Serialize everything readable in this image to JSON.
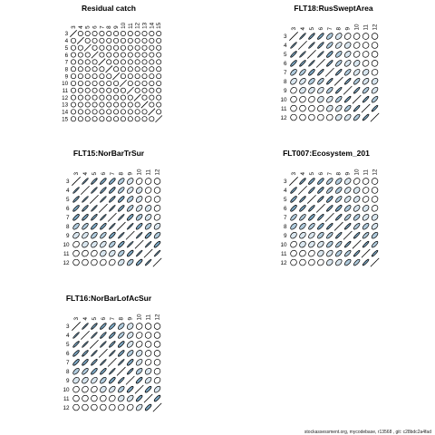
{
  "footer": "stockassessment.org, mycodebase, r13568 , git: c28bdc2a4fad",
  "colors": {
    "positive": "#7da9c6",
    "ellipse_edge": "#000000",
    "background": "#ffffff"
  },
  "chart_data": [
    {
      "type": "correlation-ellipse-matrix",
      "title": "Residual catch",
      "ages": [
        "3",
        "4",
        "5",
        "6",
        "7",
        "8",
        "9",
        "10",
        "11",
        "12",
        "13",
        "14",
        "15"
      ],
      "correlations": [
        [
          1,
          0.0,
          0.0,
          0.0,
          0.0,
          0.0,
          0.0,
          0.0,
          0.0,
          0.0,
          0.0,
          0.0,
          0.0
        ],
        [
          0.0,
          1,
          0.0,
          0.0,
          0.0,
          0.0,
          0.0,
          0.0,
          0.0,
          0.0,
          0.0,
          0.0,
          0.0
        ],
        [
          0.0,
          0.0,
          1,
          0.0,
          0.0,
          0.0,
          0.0,
          0.0,
          0.0,
          0.0,
          0.0,
          0.0,
          0.0
        ],
        [
          0.0,
          0.0,
          0.0,
          1,
          0.0,
          0.0,
          0.0,
          0.0,
          0.0,
          0.0,
          0.0,
          0.0,
          0.0
        ],
        [
          0.0,
          0.0,
          0.0,
          0.0,
          1,
          0.0,
          0.0,
          0.0,
          0.0,
          0.0,
          0.0,
          0.0,
          0.0
        ],
        [
          0.0,
          0.0,
          0.0,
          0.0,
          0.0,
          1,
          0.0,
          0.0,
          0.0,
          0.0,
          0.0,
          0.0,
          0.0
        ],
        [
          0.0,
          0.0,
          0.0,
          0.0,
          0.0,
          0.0,
          1,
          0.0,
          0.0,
          0.0,
          0.0,
          0.0,
          0.0
        ],
        [
          0.0,
          0.0,
          0.0,
          0.0,
          0.0,
          0.0,
          0.0,
          1,
          0.0,
          0.0,
          0.0,
          0.0,
          0.0
        ],
        [
          0.0,
          0.0,
          0.0,
          0.0,
          0.0,
          0.0,
          0.0,
          0.0,
          1,
          0.0,
          0.0,
          0.0,
          0.0
        ],
        [
          0.0,
          0.0,
          0.0,
          0.0,
          0.0,
          0.0,
          0.0,
          0.0,
          0.0,
          1,
          0.0,
          0.0,
          0.0
        ],
        [
          0.0,
          0.0,
          0.0,
          0.0,
          0.0,
          0.0,
          0.0,
          0.0,
          0.0,
          0.0,
          1,
          0.0,
          0.0
        ],
        [
          0.0,
          0.0,
          0.0,
          0.0,
          0.0,
          0.0,
          0.0,
          0.0,
          0.0,
          0.0,
          0.0,
          1,
          0.0
        ],
        [
          0.0,
          0.0,
          0.0,
          0.0,
          0.0,
          0.0,
          0.0,
          0.0,
          0.0,
          0.0,
          0.0,
          0.0,
          1
        ]
      ]
    },
    {
      "type": "correlation-ellipse-matrix",
      "title": "FLT18:RusSweptArea",
      "ages": [
        "3",
        "4",
        "5",
        "6",
        "7",
        "8",
        "9",
        "10",
        "11",
        "12"
      ],
      "correlations": [
        [
          1,
          0.95,
          0.9,
          0.85,
          0.6,
          0.4,
          0.2,
          0.1,
          0.05,
          0.0
        ],
        [
          0.95,
          1,
          0.95,
          0.9,
          0.7,
          0.5,
          0.3,
          0.15,
          0.05,
          0.0
        ],
        [
          0.9,
          0.95,
          1,
          0.95,
          0.8,
          0.6,
          0.4,
          0.2,
          0.1,
          0.0
        ],
        [
          0.85,
          0.9,
          0.95,
          1,
          0.9,
          0.7,
          0.5,
          0.3,
          0.15,
          0.05
        ],
        [
          0.6,
          0.7,
          0.8,
          0.9,
          1,
          0.9,
          0.7,
          0.5,
          0.3,
          0.1
        ],
        [
          0.4,
          0.5,
          0.6,
          0.7,
          0.9,
          1,
          0.9,
          0.7,
          0.5,
          0.3
        ],
        [
          0.2,
          0.3,
          0.4,
          0.5,
          0.7,
          0.9,
          1,
          0.9,
          0.7,
          0.5
        ],
        [
          0.1,
          0.15,
          0.2,
          0.3,
          0.5,
          0.7,
          0.9,
          1,
          0.9,
          0.7
        ],
        [
          0.05,
          0.05,
          0.1,
          0.15,
          0.3,
          0.5,
          0.7,
          0.9,
          1,
          0.9
        ],
        [
          0.0,
          0.0,
          0.0,
          0.05,
          0.1,
          0.3,
          0.5,
          0.7,
          0.9,
          1
        ]
      ]
    },
    {
      "type": "correlation-ellipse-matrix",
      "title": "FLT15:NorBarTrSur",
      "ages": [
        "3",
        "4",
        "5",
        "6",
        "7",
        "8",
        "9",
        "10",
        "11",
        "12"
      ],
      "correlations": [
        [
          1,
          0.95,
          0.9,
          0.85,
          0.8,
          0.6,
          0.4,
          0.2,
          0.1,
          0.0
        ],
        [
          0.95,
          1,
          0.95,
          0.9,
          0.85,
          0.7,
          0.5,
          0.3,
          0.15,
          0.05
        ],
        [
          0.9,
          0.95,
          1,
          0.95,
          0.9,
          0.8,
          0.6,
          0.4,
          0.2,
          0.1
        ],
        [
          0.85,
          0.9,
          0.95,
          1,
          0.95,
          0.85,
          0.7,
          0.5,
          0.3,
          0.15
        ],
        [
          0.8,
          0.85,
          0.9,
          0.95,
          1,
          0.95,
          0.8,
          0.6,
          0.4,
          0.2
        ],
        [
          0.6,
          0.7,
          0.8,
          0.85,
          0.95,
          1,
          0.95,
          0.8,
          0.6,
          0.4
        ],
        [
          0.4,
          0.5,
          0.6,
          0.7,
          0.8,
          0.95,
          1,
          0.95,
          0.8,
          0.6
        ],
        [
          0.2,
          0.3,
          0.4,
          0.5,
          0.6,
          0.8,
          0.95,
          1,
          0.95,
          0.8
        ],
        [
          0.1,
          0.15,
          0.2,
          0.3,
          0.4,
          0.6,
          0.8,
          0.95,
          1,
          0.95
        ],
        [
          0.0,
          0.05,
          0.1,
          0.15,
          0.2,
          0.4,
          0.6,
          0.8,
          0.95,
          1
        ]
      ]
    },
    {
      "type": "correlation-ellipse-matrix",
      "title": "FLT007:Ecosystem_201",
      "ages": [
        "3",
        "4",
        "5",
        "6",
        "7",
        "8",
        "9",
        "10",
        "11",
        "12"
      ],
      "correlations": [
        [
          1,
          0.9,
          0.85,
          0.8,
          0.7,
          0.55,
          0.35,
          0.2,
          0.1,
          0.05
        ],
        [
          0.9,
          1,
          0.9,
          0.85,
          0.75,
          0.6,
          0.4,
          0.25,
          0.15,
          0.05
        ],
        [
          0.85,
          0.9,
          1,
          0.9,
          0.8,
          0.7,
          0.5,
          0.35,
          0.2,
          0.1
        ],
        [
          0.8,
          0.85,
          0.9,
          1,
          0.9,
          0.8,
          0.6,
          0.45,
          0.3,
          0.15
        ],
        [
          0.7,
          0.75,
          0.8,
          0.9,
          1,
          0.9,
          0.75,
          0.6,
          0.45,
          0.3
        ],
        [
          0.55,
          0.6,
          0.7,
          0.8,
          0.9,
          1,
          0.9,
          0.75,
          0.6,
          0.45
        ],
        [
          0.35,
          0.4,
          0.5,
          0.6,
          0.75,
          0.9,
          1,
          0.9,
          0.75,
          0.6
        ],
        [
          0.2,
          0.25,
          0.35,
          0.45,
          0.6,
          0.75,
          0.9,
          1,
          0.9,
          0.75
        ],
        [
          0.1,
          0.15,
          0.2,
          0.3,
          0.45,
          0.6,
          0.75,
          0.9,
          1,
          0.9
        ],
        [
          0.05,
          0.05,
          0.1,
          0.15,
          0.3,
          0.45,
          0.6,
          0.75,
          0.9,
          1
        ]
      ]
    },
    {
      "type": "correlation-ellipse-matrix",
      "title": "FLT16:NorBarLofAcSur",
      "ages": [
        "3",
        "4",
        "5",
        "6",
        "7",
        "8",
        "9",
        "10",
        "11",
        "12"
      ],
      "correlations": [
        [
          1,
          0.95,
          0.9,
          0.85,
          0.8,
          0.6,
          0.3,
          0.1,
          0.0,
          0.0
        ],
        [
          0.95,
          1,
          0.95,
          0.9,
          0.85,
          0.7,
          0.4,
          0.15,
          0.05,
          0.0
        ],
        [
          0.9,
          0.95,
          1,
          0.95,
          0.9,
          0.8,
          0.5,
          0.2,
          0.05,
          0.0
        ],
        [
          0.85,
          0.9,
          0.95,
          1,
          0.95,
          0.85,
          0.6,
          0.3,
          0.1,
          0.0
        ],
        [
          0.8,
          0.85,
          0.9,
          0.95,
          1,
          0.95,
          0.8,
          0.5,
          0.2,
          0.05
        ],
        [
          0.6,
          0.7,
          0.8,
          0.85,
          0.95,
          1,
          0.9,
          0.6,
          0.3,
          0.1
        ],
        [
          0.3,
          0.4,
          0.5,
          0.6,
          0.8,
          0.9,
          1,
          0.8,
          0.5,
          0.2
        ],
        [
          0.1,
          0.15,
          0.2,
          0.3,
          0.5,
          0.6,
          0.8,
          1,
          0.8,
          0.5
        ],
        [
          0.0,
          0.05,
          0.05,
          0.1,
          0.2,
          0.3,
          0.5,
          0.8,
          1,
          0.8
        ],
        [
          0.0,
          0.0,
          0.0,
          0.0,
          0.05,
          0.1,
          0.2,
          0.5,
          0.8,
          1
        ]
      ]
    }
  ]
}
